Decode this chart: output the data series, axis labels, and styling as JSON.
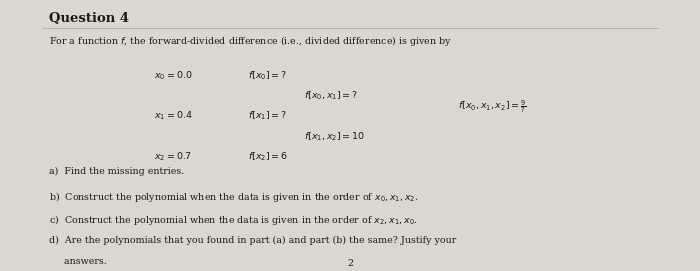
{
  "title": "Question 4",
  "bg_color": "#dbd7cf",
  "text_color": "#1a1a1a",
  "page_number": "2",
  "figsize": [
    7.0,
    2.71
  ],
  "dpi": 100,
  "title_fontsize": 9.5,
  "body_fontsize": 6.8,
  "intro_line": "For a function $f$, the forward-divided difference (i.e., divided difference) is given by",
  "r1_x0": "$x_0 = 0.0$",
  "r1_fx0": "$f[x_0] =?$",
  "r2_fx0x1": "$f[x_0, x_1] =?$",
  "r3_x1": "$x_1 = 0.4$",
  "r3_fx1": "$f[x_1] =?$",
  "r3_fx0x1x2": "$f[x_0, x_1, x_2] = \\frac{9}{?}$",
  "r4_fx1x2": "$f[x_1, x_2] = 10$",
  "r5_x2": "$x_2 = 0.7$",
  "r5_fx2": "$f[x_2] = 6$",
  "part_a": "a)  Find the missing entries.",
  "part_b": "b)  Construct the polynomial when the data is given in the order of $x_0, x_1, x_2$.",
  "part_c": "c)  Construct the polynomial when the data is given in the order of $x_2, x_1, x_0$.",
  "part_d1": "d)  Are the polynomials that you found in part (a) and part (b) the same? Justify your",
  "part_d2": "     answers."
}
